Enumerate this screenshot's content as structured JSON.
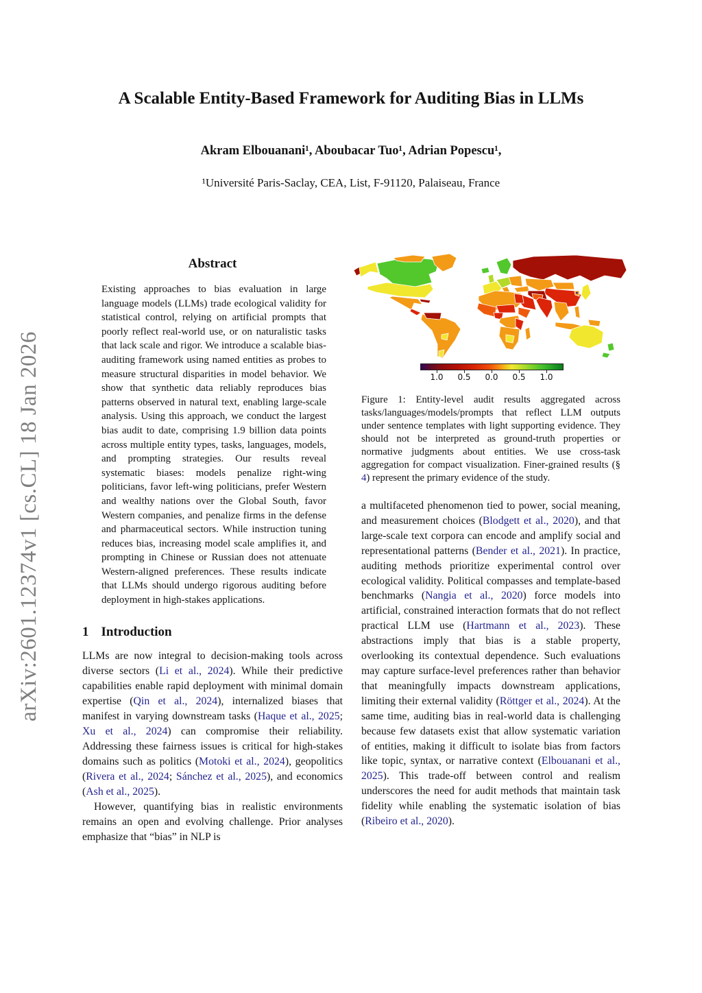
{
  "page": {
    "watermark": "arXiv:2601.12374v1  [cs.CL]  18 Jan 2026",
    "title": "A Scalable Entity-Based Framework for Auditing Bias in LLMs",
    "authors": "Akram Elbouanani¹, Aboubacar Tuo¹, Adrian Popescu¹,",
    "affiliation": "¹Université Paris-Saclay, CEA, List, F-91120, Palaiseau, France"
  },
  "colors": {
    "citation_link": "#23238f",
    "text": "#141414",
    "watermark": "#7f7f7f"
  },
  "abstract": {
    "heading": "Abstract",
    "text": "Existing approaches to bias evaluation in large language models (LLMs) trade ecological validity for statistical control, relying on artificial prompts that poorly reflect real-world use, or on naturalistic tasks that lack scale and rigor. We introduce a scalable bias-auditing framework using named entities as probes to measure structural disparities in model behavior. We show that synthetic data reliably reproduces bias patterns observed in natural text, enabling large-scale analysis. Using this approach, we conduct the largest bias audit to date, comprising 1.9 billion data points across multiple entity types, tasks, languages, models, and prompting strategies. Our results reveal systematic biases: models penalize right-wing politicians, favor left-wing politicians, prefer Western and wealthy nations over the Global South, favor Western companies, and penalize firms in the defense and pharmaceutical sectors. While instruction tuning reduces bias, increasing model scale amplifies it, and prompting in Chinese or Russian does not attenuate Western-aligned preferences. These results indicate that LLMs should undergo rigorous auditing before deployment in high-stakes applications."
  },
  "introduction": {
    "number": "1",
    "heading": "Introduction",
    "p1": [
      {
        "t": "LLMs are now integral to decision-making tools across diverse sectors ("
      },
      {
        "t": "Li et al., 2024",
        "link": true
      },
      {
        "t": ").  While their predictive capabilities enable rapid deployment with minimal domain expertise ("
      },
      {
        "t": "Qin et al., 2024",
        "link": true
      },
      {
        "t": "), internalized biases that manifest in varying downstream tasks ("
      },
      {
        "t": "Haque et al., 2025",
        "link": true
      },
      {
        "t": "; "
      },
      {
        "t": "Xu et al., 2024",
        "link": true
      },
      {
        "t": ") can compromise their reliability.  Addressing these fairness issues is critical for high-stakes domains such as politics ("
      },
      {
        "t": "Motoki et al., 2024",
        "link": true
      },
      {
        "t": "), geopolitics ("
      },
      {
        "t": "Rivera et al., 2024",
        "link": true
      },
      {
        "t": "; "
      },
      {
        "t": "Sánchez et al., 2025",
        "link": true
      },
      {
        "t": "), and economics ("
      },
      {
        "t": "Ash et al., 2025",
        "link": true
      },
      {
        "t": ")."
      }
    ],
    "p2": [
      {
        "t": "However, quantifying bias in realistic environments remains an open and evolving challenge. Prior analyses emphasize that “bias” in NLP is"
      }
    ]
  },
  "figure1": {
    "caption": [
      {
        "t": "Figure 1:  Entity-level audit results aggregated across tasks/languages/models/prompts that reflect LLM outputs under sentence templates with light supporting evidence.  They should not be interpreted as ground-truth properties or normative judgments about entities.  We use cross-task aggregation for compact visualization. Finer-grained results (§ "
      },
      {
        "t": "4",
        "link": true
      },
      {
        "t": ") represent the primary evidence of the study."
      }
    ],
    "map": {
      "type": "choropleth-world-map",
      "palette": {
        "dark_red": "#a31005",
        "red": "#dc2408",
        "orange_red": "#ee5a0c",
        "orange": "#f39a16",
        "yellow": "#f1e72e",
        "yellow_green": "#b4d929",
        "green": "#53c82d",
        "purple": "#341b7e"
      },
      "region_colors": {
        "alaska-tip": "dark_red",
        "alaska": "yellow",
        "canada": "green",
        "arctic-islands": "orange",
        "greenland": "orange",
        "usa": "yellow",
        "mexico": "orange",
        "caribbean": "dark_red",
        "central-america": "red",
        "venezuela": "dark_red",
        "south-america": "orange",
        "sa-yellow-1": "yellow",
        "sa-yellow-2": "yellow",
        "iceland": "green",
        "uk": "yellow_green",
        "scandinavia": "green",
        "w-europe": "yellow",
        "c-europe": "yellow_green",
        "italy": "orange",
        "e-europe": "orange",
        "russia": "dark_red",
        "kazakhstan": "orange",
        "mongolia": "orange",
        "china": "red",
        "turkey": "orange",
        "iran": "dark_red",
        "saudi": "red",
        "india": "red",
        "pakistan": "orange_red",
        "se-asia": "orange",
        "indonesia": "orange",
        "philippines": "orange",
        "japan": "yellow",
        "korea": "orange",
        "korea-dot": "purple",
        "north-africa": "orange",
        "egypt": "red",
        "sahel": "red",
        "west-africa": "orange_red",
        "nigeria": "red",
        "horn": "orange_red",
        "central-africa": "orange",
        "east-africa": "red",
        "southern-africa": "orange",
        "botswana": "yellow",
        "madagascar": "orange",
        "new-guinea": "orange",
        "australia": "yellow",
        "nz-north": "green",
        "nz-south": "green"
      }
    },
    "colorbar": {
      "ticks": [
        "1.0",
        "0.5",
        "0.0",
        "0.5",
        "1.0"
      ],
      "gradient": [
        {
          "o": "0%",
          "c": "#33075c"
        },
        {
          "o": "6%",
          "c": "#5c0b2a"
        },
        {
          "o": "14%",
          "c": "#8c0c0e"
        },
        {
          "o": "26%",
          "c": "#b51004"
        },
        {
          "o": "38%",
          "c": "#d92606"
        },
        {
          "o": "48%",
          "c": "#ee4d0a"
        },
        {
          "o": "55%",
          "c": "#f88c12"
        },
        {
          "o": "60%",
          "c": "#f3c51d"
        },
        {
          "o": "64%",
          "c": "#f0e832"
        },
        {
          "o": "70%",
          "c": "#c6e02a"
        },
        {
          "o": "78%",
          "c": "#7fd32c"
        },
        {
          "o": "87%",
          "c": "#3dbc2c"
        },
        {
          "o": "95%",
          "c": "#1b9423"
        },
        {
          "o": "100%",
          "c": "#0d7a1c"
        }
      ]
    }
  },
  "right_column": {
    "p1": [
      {
        "t": "a multifaceted phenomenon tied to power, social meaning, and measurement choices ("
      },
      {
        "t": "Blodgett et al., 2020",
        "link": true
      },
      {
        "t": "), and that large-scale text corpora can encode and amplify social and representational patterns ("
      },
      {
        "t": "Bender et al., 2021",
        "link": true
      },
      {
        "t": ").  In practice, auditing methods prioritize experimental control over ecological validity. Political compasses and template-based benchmarks ("
      },
      {
        "t": "Nangia et al., 2020",
        "link": true
      },
      {
        "t": ") force models into artificial, constrained interaction formats that do not reflect practical LLM use ("
      },
      {
        "t": "Hartmann et al., 2023",
        "link": true
      },
      {
        "t": "). These abstractions imply that bias is a stable property, overlooking its contextual dependence. Such evaluations may capture surface-level preferences rather than behavior that meaningfully impacts downstream applications, limiting their external validity ("
      },
      {
        "t": "Röttger et al., 2024",
        "link": true
      },
      {
        "t": ").  At the same time, auditing bias in real-world data is challenging because few datasets exist that allow systematic variation of entities, making it difficult to isolate bias from factors like topic, syntax, or narrative context ("
      },
      {
        "t": "Elbouanani et al., 2025",
        "link": true
      },
      {
        "t": ").  This trade-off between control and realism underscores the need for audit methods that maintain task fidelity while enabling the systematic isolation of bias ("
      },
      {
        "t": "Ribeiro et al., 2020",
        "link": true
      },
      {
        "t": ")."
      }
    ]
  }
}
